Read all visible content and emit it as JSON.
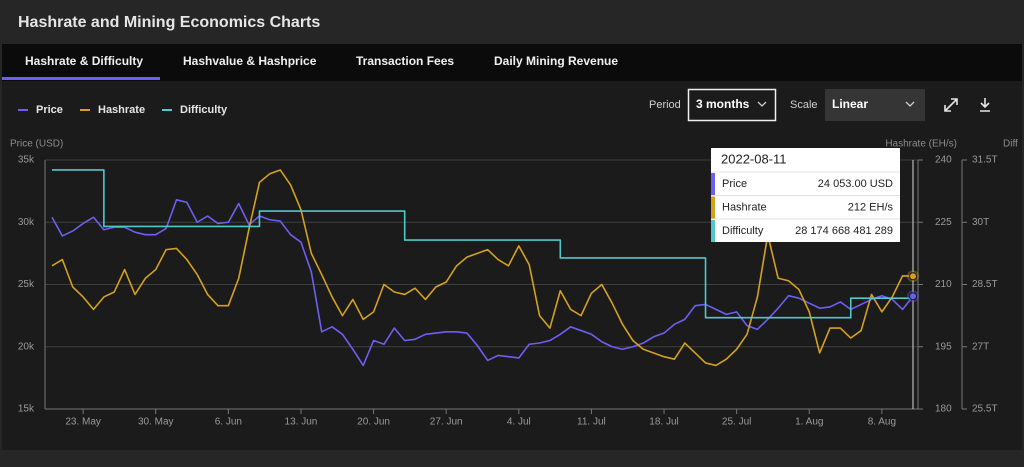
{
  "header": {
    "title": "Hashrate and Mining Economics Charts"
  },
  "tabs": [
    "Hashrate & Difficulty",
    "Hashvalue & Hashprice",
    "Transaction Fees",
    "Daily Mining Revenue"
  ],
  "controls": {
    "period_label": "Period",
    "period": "3 months",
    "scale_label": "Scale",
    "scale": "Linear"
  },
  "chart_data": {
    "type": "line",
    "y_label": "Price (USD)",
    "y2_label": "Hashrate (EH/s)",
    "y3_label": "Diff",
    "x": [
      "2022-05-20",
      "2022-05-21",
      "2022-05-22",
      "2022-05-23",
      "2022-05-24",
      "2022-05-25",
      "2022-05-26",
      "2022-05-27",
      "2022-05-28",
      "2022-05-29",
      "2022-05-30",
      "2022-05-31",
      "2022-06-01",
      "2022-06-02",
      "2022-06-03",
      "2022-06-04",
      "2022-06-05",
      "2022-06-06",
      "2022-06-07",
      "2022-06-08",
      "2022-06-09",
      "2022-06-10",
      "2022-06-11",
      "2022-06-12",
      "2022-06-13",
      "2022-06-14",
      "2022-06-15",
      "2022-06-16",
      "2022-06-17",
      "2022-06-18",
      "2022-06-19",
      "2022-06-20",
      "2022-06-21",
      "2022-06-22",
      "2022-06-23",
      "2022-06-24",
      "2022-06-25",
      "2022-06-26",
      "2022-06-27",
      "2022-06-28",
      "2022-06-29",
      "2022-06-30",
      "2022-07-01",
      "2022-07-02",
      "2022-07-03",
      "2022-07-04",
      "2022-07-05",
      "2022-07-06",
      "2022-07-07",
      "2022-07-08",
      "2022-07-09",
      "2022-07-10",
      "2022-07-11",
      "2022-07-12",
      "2022-07-13",
      "2022-07-14",
      "2022-07-15",
      "2022-07-16",
      "2022-07-17",
      "2022-07-18",
      "2022-07-19",
      "2022-07-20",
      "2022-07-21",
      "2022-07-22",
      "2022-07-23",
      "2022-07-24",
      "2022-07-25",
      "2022-07-26",
      "2022-07-27",
      "2022-07-28",
      "2022-07-29",
      "2022-07-30",
      "2022-07-31",
      "2022-08-01",
      "2022-08-02",
      "2022-08-03",
      "2022-08-04",
      "2022-08-05",
      "2022-08-06",
      "2022-08-07",
      "2022-08-08",
      "2022-08-09",
      "2022-08-10",
      "2022-08-11"
    ],
    "xlim": [
      "2022-05-20",
      "2022-08-11"
    ],
    "xticks": [
      {
        "value": "2022-05-23",
        "label": "23. May"
      },
      {
        "value": "2022-05-30",
        "label": "30. May"
      },
      {
        "value": "2022-06-06",
        "label": "6. Jun"
      },
      {
        "value": "2022-06-13",
        "label": "13. Jun"
      },
      {
        "value": "2022-06-20",
        "label": "20. Jun"
      },
      {
        "value": "2022-06-27",
        "label": "27. Jun"
      },
      {
        "value": "2022-07-04",
        "label": "4. Jul"
      },
      {
        "value": "2022-07-11",
        "label": "11. Jul"
      },
      {
        "value": "2022-07-18",
        "label": "18. Jul"
      },
      {
        "value": "2022-07-25",
        "label": "25. Jul"
      },
      {
        "value": "2022-08-01",
        "label": "1. Aug"
      },
      {
        "value": "2022-08-08",
        "label": "8. Aug"
      }
    ],
    "ylim": [
      15000,
      35000
    ],
    "yticks": [
      {
        "value": 15000,
        "label": "15k"
      },
      {
        "value": 20000,
        "label": "20k"
      },
      {
        "value": 25000,
        "label": "25k"
      },
      {
        "value": 30000,
        "label": "30k"
      },
      {
        "value": 35000,
        "label": "35k"
      }
    ],
    "y2lim": [
      180,
      240
    ],
    "y2ticks": [
      180,
      195,
      210,
      225,
      240
    ],
    "y3lim": [
      25.5,
      31.5
    ],
    "y3ticks": [
      {
        "value": 25.5,
        "label": "25.5T"
      },
      {
        "value": 27,
        "label": "27T"
      },
      {
        "value": 28.5,
        "label": "28.5T"
      },
      {
        "value": 30,
        "label": "30T"
      },
      {
        "value": 31.5,
        "label": "31.5T"
      }
    ],
    "grid": true,
    "series": [
      {
        "name": "Price",
        "color": "#6c5ff2",
        "axis": "y",
        "values": [
          30400,
          28900,
          29300,
          29900,
          30400,
          29400,
          29600,
          29600,
          29200,
          29000,
          29000,
          29500,
          31800,
          31600,
          30000,
          30500,
          29900,
          30000,
          31500,
          29800,
          30500,
          30200,
          30100,
          29000,
          28400,
          26000,
          21200,
          21600,
          21000,
          19800,
          18500,
          20500,
          20200,
          21500,
          20500,
          20600,
          21000,
          21100,
          21200,
          21200,
          21100,
          20100,
          18900,
          19300,
          19200,
          19100,
          20200,
          20300,
          20500,
          21000,
          21600,
          21300,
          21000,
          20400,
          20000,
          19800,
          20000,
          20300,
          20800,
          21100,
          21800,
          22200,
          23300,
          23400,
          23000,
          22600,
          22800,
          21700,
          21400,
          22200,
          23100,
          24100,
          23900,
          23500,
          23100,
          23200,
          23600,
          23000,
          23400,
          23800,
          24100,
          23800,
          23000,
          24053
        ]
      },
      {
        "name": "Hashrate",
        "color": "#d4a11c",
        "axis": "y2",
        "values": [
          214.5,
          216,
          209.4,
          207,
          204,
          207,
          208.2,
          213.6,
          207.6,
          211.5,
          213.6,
          218.4,
          218.7,
          216,
          212.4,
          207.6,
          204.9,
          204.9,
          211.5,
          223.5,
          234.6,
          236.7,
          237.6,
          234,
          228,
          217.5,
          212.4,
          207,
          202.5,
          206.4,
          201.6,
          203.4,
          210,
          208.2,
          207.6,
          209.1,
          206.4,
          209.4,
          210.6,
          214.5,
          216.6,
          217.5,
          218.4,
          216,
          214.5,
          219.3,
          214.8,
          202.5,
          199.5,
          208.5,
          204,
          202.5,
          207.9,
          210,
          205.5,
          200.4,
          196.5,
          194.4,
          193.5,
          192.6,
          192,
          195.9,
          193.5,
          191.1,
          190.5,
          192,
          194.4,
          198,
          207,
          222,
          211.5,
          210.9,
          208.8,
          203.4,
          193.5,
          199.5,
          199.5,
          197.1,
          198.9,
          207.6,
          203.4,
          207,
          212.1,
          212
        ]
      },
      {
        "name": "Difficulty",
        "color": "#4fc8cc",
        "axis": "y3",
        "values": [
          31.26,
          31.26,
          31.26,
          31.26,
          31.26,
          29.9,
          29.9,
          29.9,
          29.9,
          29.9,
          29.9,
          29.9,
          29.9,
          29.9,
          29.9,
          29.9,
          29.9,
          29.9,
          29.9,
          29.9,
          30.27,
          30.27,
          30.27,
          30.27,
          30.27,
          30.27,
          30.27,
          30.27,
          30.27,
          30.27,
          30.27,
          30.27,
          30.27,
          30.27,
          29.57,
          29.57,
          29.57,
          29.57,
          29.57,
          29.57,
          29.57,
          29.57,
          29.57,
          29.57,
          29.57,
          29.57,
          29.57,
          29.57,
          29.57,
          29.14,
          29.14,
          29.14,
          29.14,
          29.14,
          29.14,
          29.14,
          29.14,
          29.14,
          29.14,
          29.14,
          29.14,
          29.14,
          29.14,
          27.7,
          27.7,
          27.7,
          27.7,
          27.7,
          27.7,
          27.7,
          27.7,
          27.7,
          27.7,
          27.7,
          27.7,
          27.7,
          27.7,
          28.17,
          28.17,
          28.17,
          28.17,
          28.17,
          28.17,
          28.17
        ]
      }
    ]
  },
  "tooltip": {
    "date": "2022-08-11",
    "rows": [
      {
        "label": "Price",
        "value": "24 053.00 USD"
      },
      {
        "label": "Hashrate",
        "value": "212 EH/s"
      },
      {
        "label": "Difficulty",
        "value": "28 174 668 481 289"
      }
    ]
  }
}
